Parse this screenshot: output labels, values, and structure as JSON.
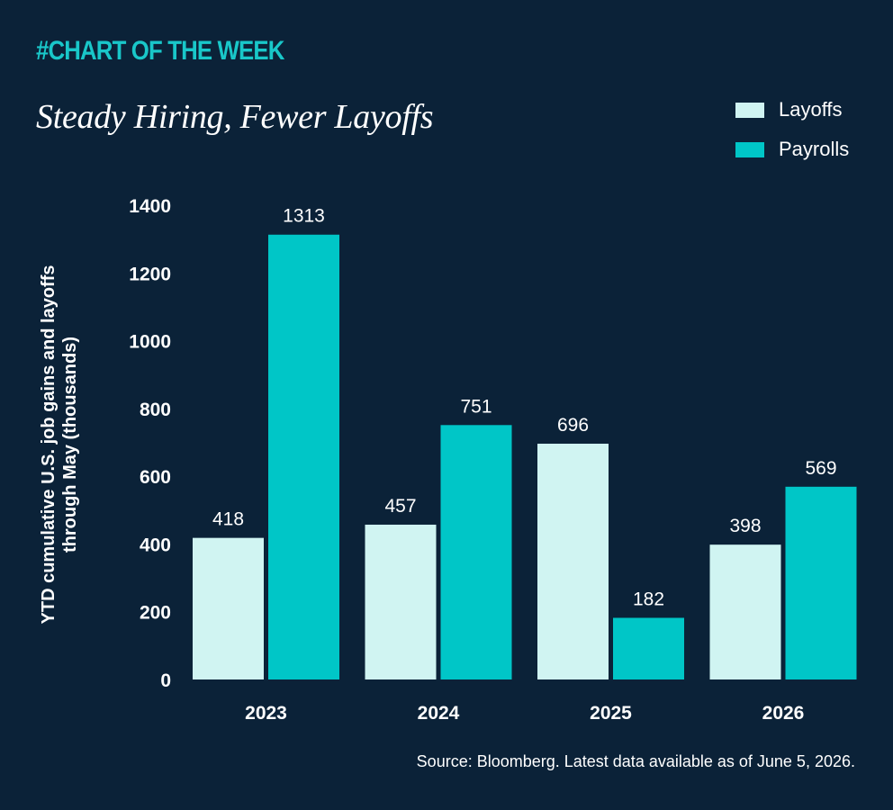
{
  "header": {
    "kicker": "#CHART OF THE WEEK",
    "title": "Steady Hiring, Fewer Layoffs"
  },
  "footer": {
    "source": "Source: Bloomberg. Latest data available as of June 5, 2026."
  },
  "colors": {
    "background": "#0b2238",
    "layoffs": "#d0f4f2",
    "payrolls": "#00c6c7",
    "accent": "#19c7c9"
  },
  "chart_data": {
    "type": "bar",
    "title": "Steady Hiring, Fewer Layoffs",
    "xlabel": "",
    "ylabel": "YTD cumulative U.S. job gains and layoffs through May (thousands)",
    "categories": [
      "2023",
      "2024",
      "2025",
      "2026"
    ],
    "series": [
      {
        "name": "Layoffs",
        "values": [
          418,
          457,
          696,
          398
        ]
      },
      {
        "name": "Payrolls",
        "values": [
          1313,
          751,
          182,
          569
        ]
      }
    ],
    "ylim": [
      0,
      1400
    ],
    "yticks": [
      0,
      200,
      400,
      600,
      800,
      1000,
      1200,
      1400
    ],
    "grid": false,
    "legend": "top-right",
    "data_labels": true
  }
}
